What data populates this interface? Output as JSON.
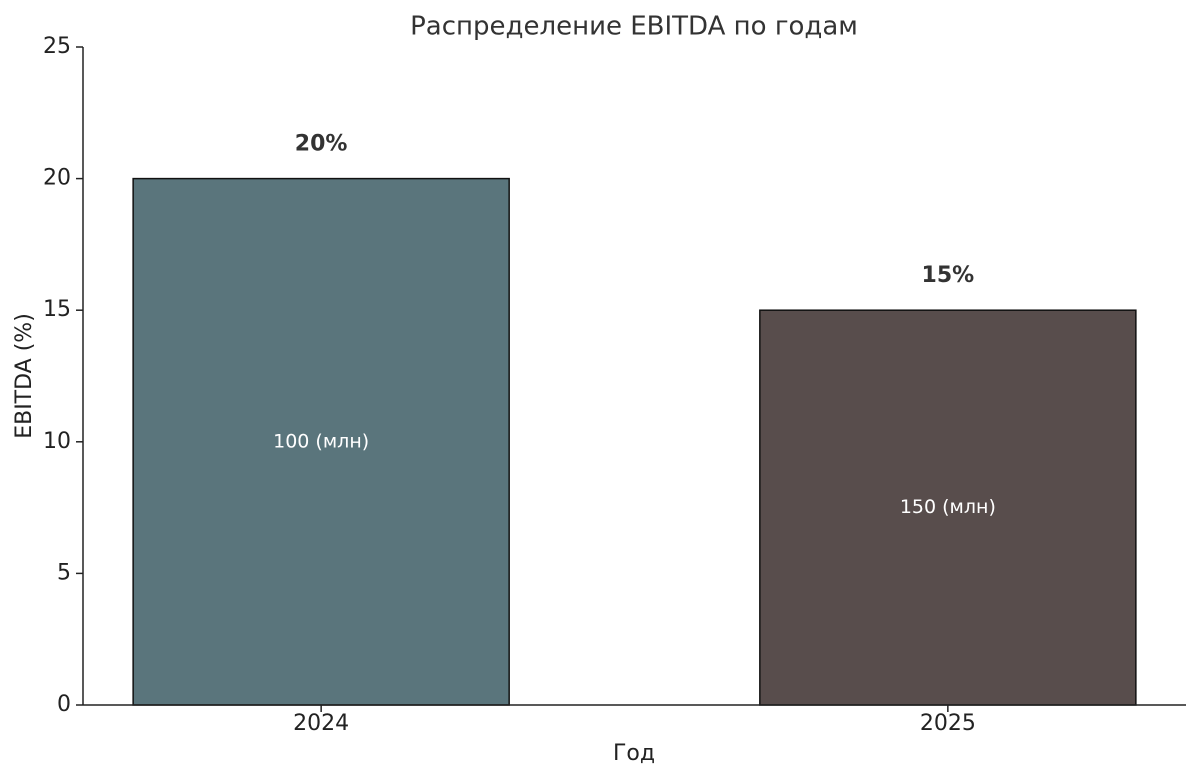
{
  "chart_data": {
    "type": "bar",
    "title": "Распределение EBITDA по годам",
    "x_label": "Год",
    "y_label": "EBITDA (%)",
    "categories": [
      "2024",
      "2025"
    ],
    "values": [
      20,
      15
    ],
    "value_labels": [
      "20%",
      "15%"
    ],
    "annotations": [
      "100 (млн)",
      "150 (млн)"
    ],
    "colors": [
      "#5a757c",
      "#584d4c"
    ],
    "ylim": [
      0,
      25
    ],
    "yticks": [
      0,
      5,
      10,
      15,
      20,
      25
    ],
    "grid": false
  }
}
